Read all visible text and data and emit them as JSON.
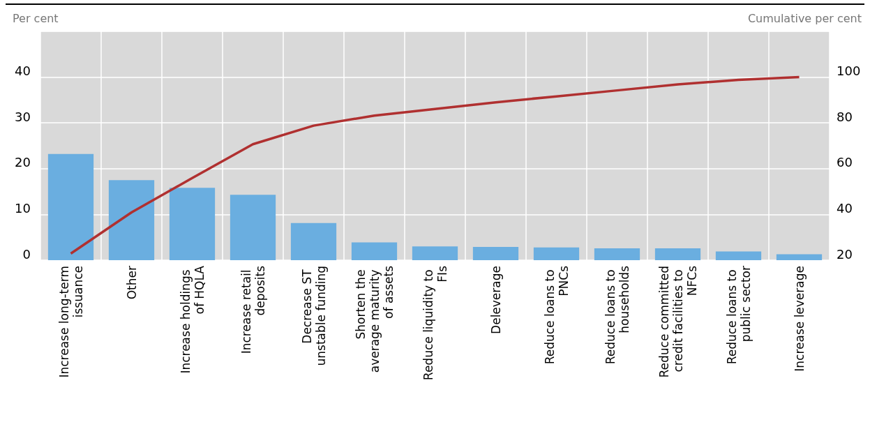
{
  "chart_data": {
    "type": "bar",
    "ylabel": "Per cent",
    "y2label": "Cumulative per cent",
    "categories": [
      "Increase long-term issuance",
      "Other",
      "Increase holdings of HQLA",
      "Increase retail deposits",
      "Decrease ST unstable funding",
      "Shorten the average maturity of assets",
      "Reduce liquidity to FIs",
      "Deleverage",
      "Reduce loans to PNCs",
      "Reduce loans to households",
      "Reduce committed credit facilities to NFCs",
      "Reduce loans to public sector",
      "Increase leverage"
    ],
    "series": [
      {
        "color": "#6aaee0",
        "values": [
          23.2,
          17.5,
          15.8,
          14.3,
          8.1,
          3.9,
          3.0,
          2.9,
          2.8,
          2.6,
          2.6,
          1.9,
          1.3
        ]
      },
      {
        "type": "line",
        "axis": "y2",
        "color": "#b03030",
        "values": [
          22.9,
          40.9,
          55.9,
          70.7,
          78.8,
          83.2,
          86.1,
          89.0,
          91.6,
          94.2,
          96.8,
          98.8,
          100
        ]
      }
    ],
    "ylim": [
      0,
      50
    ],
    "yticks": [
      0,
      10,
      20,
      30,
      40
    ],
    "y2lim": [
      20,
      120
    ],
    "y2ticks": [
      20,
      40,
      60,
      80,
      100
    ],
    "grid": true,
    "marker": "none",
    "line_style": "solid"
  }
}
